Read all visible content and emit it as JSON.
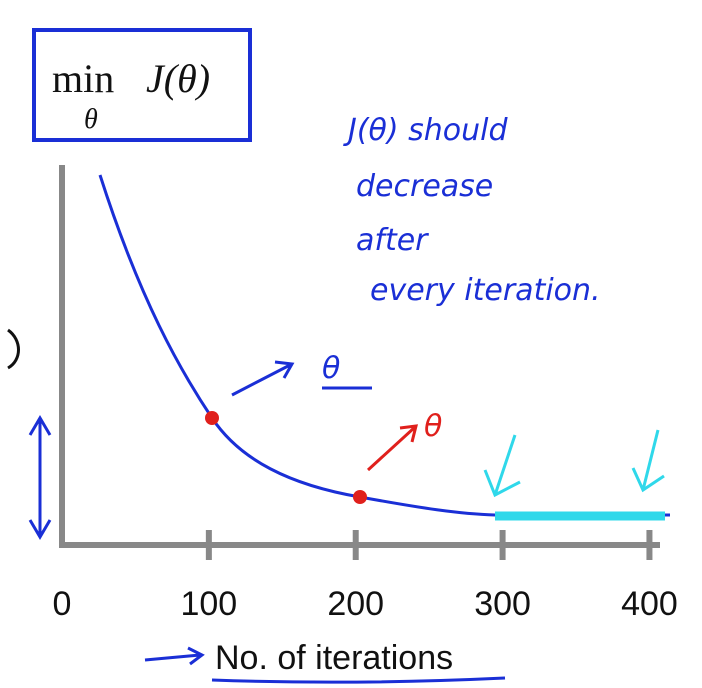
{
  "chart_data": {
    "type": "line",
    "title": {
      "operator": "min",
      "subscript": "θ",
      "function": "J(θ)"
    },
    "x_label": "No. of iterations",
    "xlim": [
      0,
      414
    ],
    "xticks": [
      0,
      100,
      200,
      300,
      400
    ],
    "annotations": [
      "J(θ) should",
      "decrease",
      "after",
      "every iteration.",
      "θ",
      "θ"
    ]
  }
}
